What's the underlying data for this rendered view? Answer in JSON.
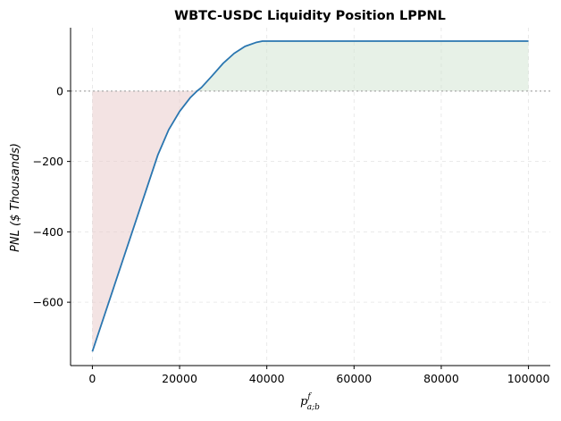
{
  "chart_data": {
    "type": "line",
    "title": "WBTC-USDC Liquidity Position LPPNL",
    "ylabel": "PNL ($ Thousands)",
    "xlabel": {
      "base": "p",
      "sup": "f",
      "sub": "a;b"
    },
    "xlim": [
      -5000,
      105000
    ],
    "ylim": [
      -780,
      180
    ],
    "xticks": [
      0,
      20000,
      40000,
      60000,
      80000,
      100000
    ],
    "yticks": [
      -600,
      -400,
      -200,
      0
    ],
    "xtick_labels": [
      "0",
      "20000",
      "40000",
      "60000",
      "80000",
      "100000"
    ],
    "ytick_labels": [
      "−600",
      "−400",
      "−200",
      "0"
    ],
    "grid": true,
    "zero_line": true,
    "series": [
      {
        "x": [
          0,
          2500,
          5000,
          7500,
          10000,
          12500,
          15000,
          17500,
          20000,
          22500,
          24000,
          25000,
          27500,
          30000,
          32500,
          35000,
          37500,
          39000,
          40000,
          50000,
          60000,
          70000,
          80000,
          90000,
          100000
        ],
        "values": [
          -740,
          -647,
          -554,
          -461,
          -368,
          -275,
          -182,
          -110,
          -58,
          -18,
          0,
          10,
          44,
          79,
          107,
          127,
          138,
          142,
          142,
          142,
          142,
          142,
          142,
          142,
          142
        ]
      }
    ],
    "colors": {
      "line": "#2a76b0",
      "loss_fill": "#e8c8c8",
      "profit_fill": "#cfe4cf",
      "zero_line": "#aaaaaa",
      "grid": "#e4e4e4"
    }
  }
}
